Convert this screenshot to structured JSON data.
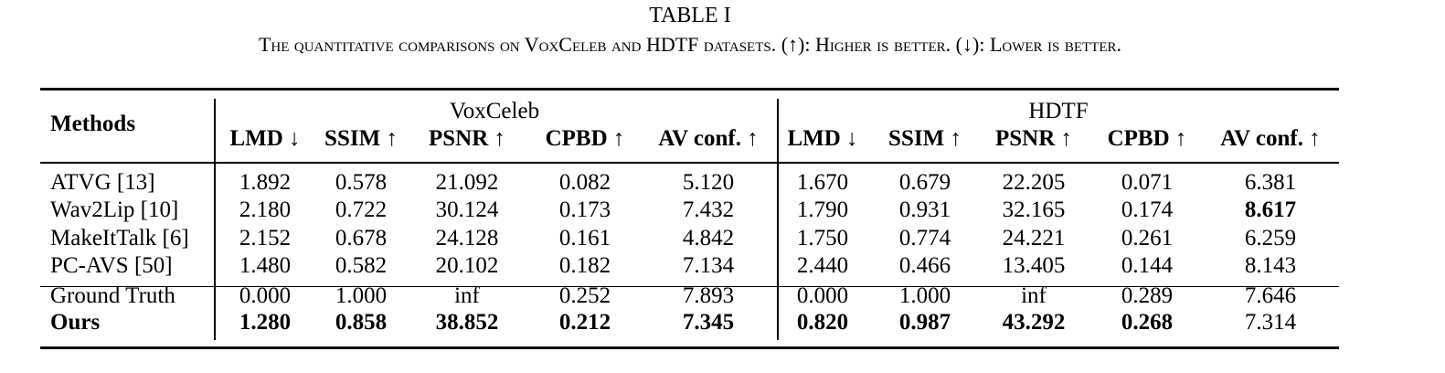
{
  "table": {
    "label": "TABLE I",
    "caption": "The quantitative comparisons on VoxCeleb and HDTF datasets. (↑): Higher is better. (↓): Lower is better.",
    "methods_header": "Methods",
    "groups": [
      "VoxCeleb",
      "HDTF"
    ],
    "columns": [
      "LMD ↓",
      "SSIM ↑",
      "PSNR ↑",
      "CPBD ↑",
      "AV conf. ↑",
      "LMD ↓",
      "SSIM ↑",
      "PSNR ↑",
      "CPBD ↑",
      "AV conf. ↑"
    ],
    "rows": [
      {
        "method": "ATVG [13]",
        "values": [
          "1.892",
          "0.578",
          "21.092",
          "0.082",
          "5.120",
          "1.670",
          "0.679",
          "22.205",
          "0.071",
          "6.381"
        ],
        "bold": []
      },
      {
        "method": "Wav2Lip [10]",
        "values": [
          "2.180",
          "0.722",
          "30.124",
          "0.173",
          "7.432",
          "1.790",
          "0.931",
          "32.165",
          "0.174",
          "8.617"
        ],
        "bold": [
          9
        ]
      },
      {
        "method": "MakeItTalk [6]",
        "values": [
          "2.152",
          "0.678",
          "24.128",
          "0.161",
          "4.842",
          "1.750",
          "0.774",
          "24.221",
          "0.261",
          "6.259"
        ],
        "bold": []
      },
      {
        "method": "PC-AVS [50]",
        "values": [
          "1.480",
          "0.582",
          "20.102",
          "0.182",
          "7.134",
          "2.440",
          "0.466",
          "13.405",
          "0.144",
          "8.143"
        ],
        "bold": []
      },
      {
        "method": "Ground Truth",
        "values": [
          "0.000",
          "1.000",
          "inf",
          "0.252",
          "7.893",
          "0.000",
          "1.000",
          "inf",
          "0.289",
          "7.646"
        ],
        "bold": []
      },
      {
        "method": "Ours",
        "values": [
          "1.280",
          "0.858",
          "38.852",
          "0.212",
          "7.345",
          "0.820",
          "0.987",
          "43.292",
          "0.268",
          "7.314"
        ],
        "bold": [
          0,
          1,
          2,
          3,
          4,
          5,
          6,
          7,
          8
        ],
        "method_bold": true
      }
    ]
  }
}
